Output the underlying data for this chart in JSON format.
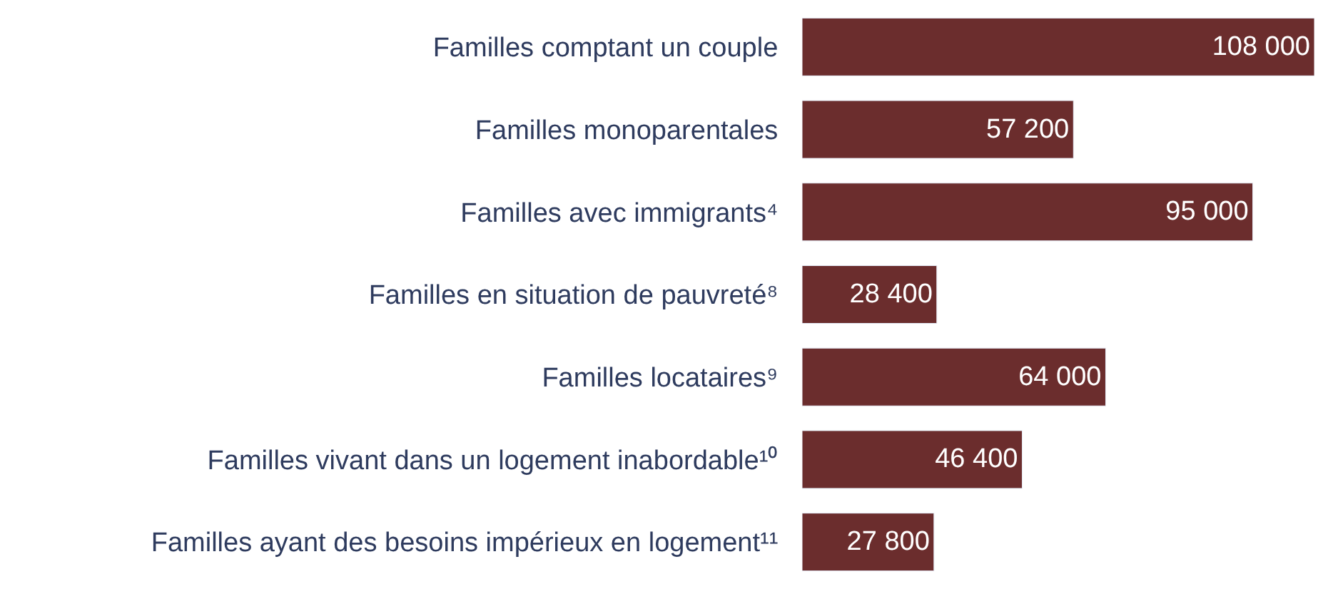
{
  "chart_data": {
    "type": "bar",
    "orientation": "horizontal",
    "data_labels": true,
    "color": "#6b2d2d",
    "categories": [
      "Familles comptant un couple",
      "Familles monoparentales",
      "Familles avec immigrants⁴",
      "Familles en situation de pauvreté⁸",
      "Familles locataires⁹",
      "Familles vivant dans un logement inabordable¹⁰",
      "Familles ayant des besoins impérieux en logement¹¹"
    ],
    "values": [
      108000,
      57200,
      95000,
      28400,
      64000,
      46400,
      27800
    ]
  }
}
